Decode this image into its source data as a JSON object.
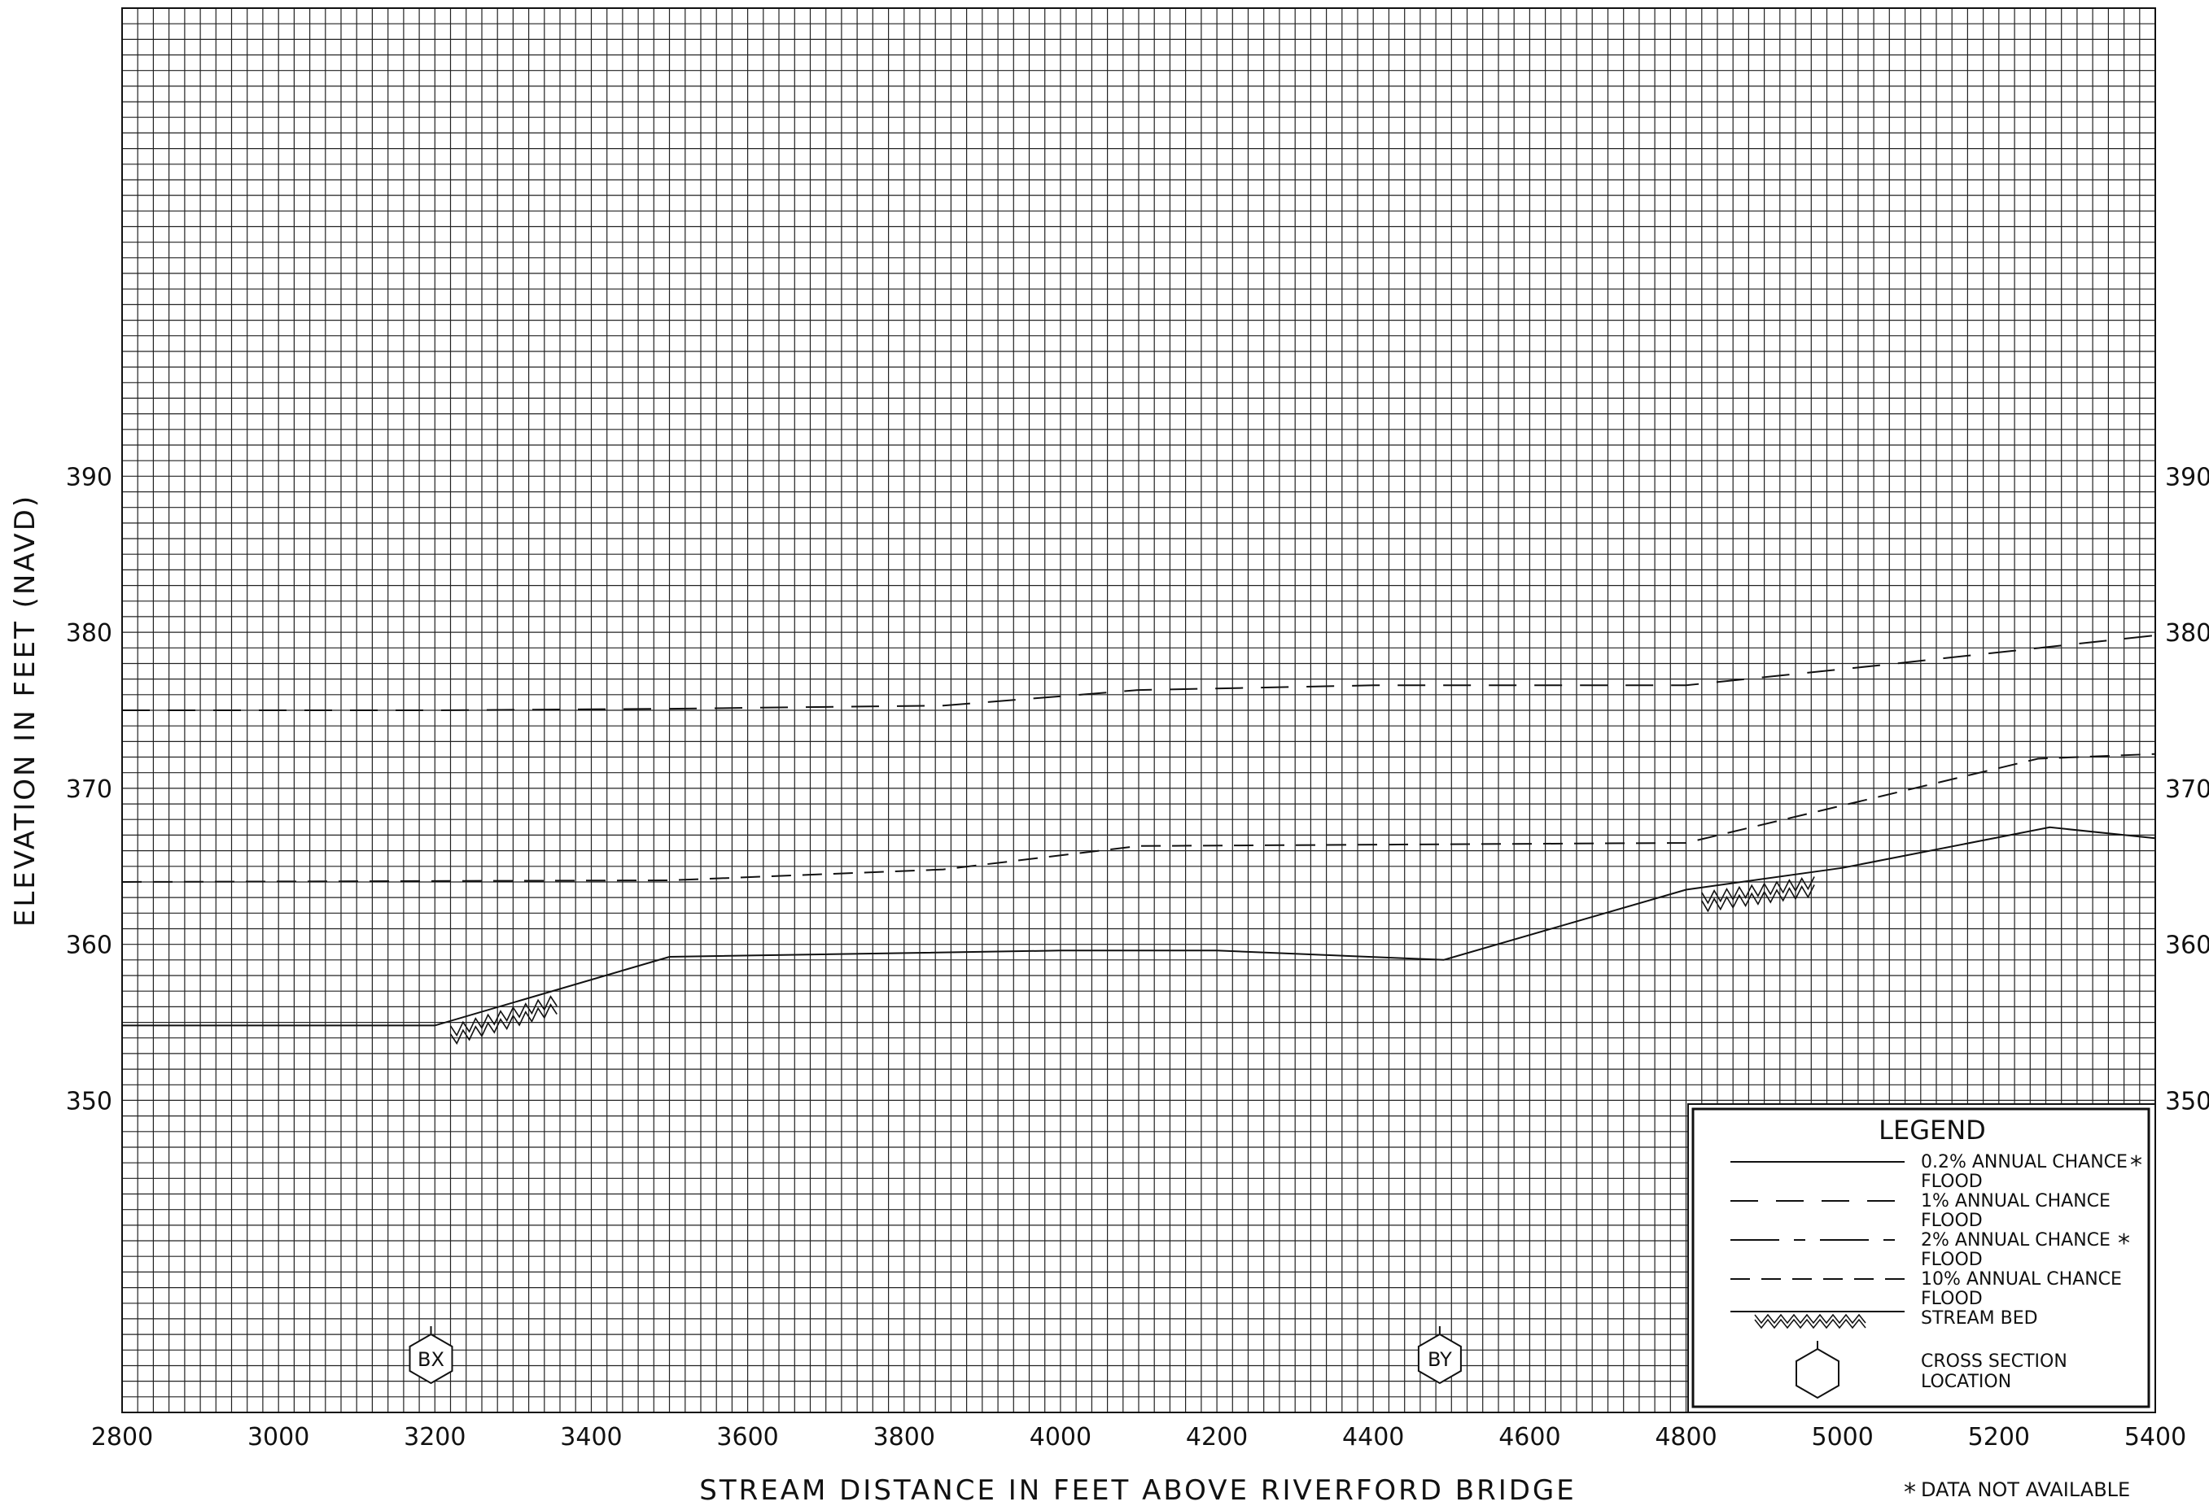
{
  "chart_data": {
    "type": "line",
    "xlabel": "STREAM DISTANCE IN FEET ABOVE RIVERFORD BRIDGE",
    "ylabel": "ELEVATION IN FEET (NAVD)",
    "xlim": [
      2800,
      5400
    ],
    "ylim": [
      330,
      420
    ],
    "x_ticks": [
      "2800",
      "3000",
      "3200",
      "3400",
      "3600",
      "3800",
      "4000",
      "4200",
      "4400",
      "4600",
      "4800",
      "5000",
      "5200",
      "5400"
    ],
    "y_ticks": [
      "350",
      "360",
      "370",
      "380",
      "390"
    ],
    "grid": true,
    "series": [
      {
        "name": "1% ANNUAL CHANCE FLOOD",
        "style": "long-dash",
        "x": [
          2800,
          3200,
          3500,
          3850,
          4100,
          4400,
          4800,
          5050,
          5400
        ],
        "y": [
          375.0,
          375.0,
          375.1,
          375.3,
          376.3,
          376.6,
          376.6,
          377.9,
          379.8
        ]
      },
      {
        "name": "10% ANNUAL CHANCE FLOOD",
        "style": "short-dash",
        "x": [
          2800,
          3500,
          3850,
          4100,
          4800,
          5050,
          5250,
          5400
        ],
        "y": [
          364.0,
          364.1,
          364.8,
          366.3,
          366.5,
          369.5,
          371.9,
          372.2
        ]
      },
      {
        "name": "STREAM BED",
        "style": "solid",
        "x": [
          2800,
          3200,
          3500,
          4000,
          4200,
          4490,
          4800,
          5000,
          5265,
          5400
        ],
        "y": [
          354.8,
          354.8,
          359.2,
          359.6,
          359.6,
          359.0,
          363.5,
          364.9,
          367.5,
          366.8
        ]
      }
    ],
    "hatch_segments": [
      [
        3220,
        3360
      ],
      [
        4820,
        4970
      ]
    ],
    "cross_sections": [
      {
        "label": "BX",
        "x": 3195
      },
      {
        "label": "BY",
        "x": 4485
      }
    ],
    "legend": {
      "title": "LEGEND",
      "placement": "bottom-right",
      "items": [
        {
          "style": "solid",
          "line1": "0.2% ANNUAL CHANCE",
          "line2": "FLOOD",
          "star": true
        },
        {
          "style": "long-dash",
          "line1": "1% ANNUAL CHANCE",
          "line2": "FLOOD",
          "star": false
        },
        {
          "style": "dash-dot",
          "line1": "2% ANNUAL CHANCE",
          "line2": "FLOOD",
          "star": true
        },
        {
          "style": "short-dash",
          "line1": "10% ANNUAL CHANCE",
          "line2": "FLOOD",
          "star": false
        },
        {
          "style": "stream-bed",
          "line1": "STREAM BED",
          "line2": "",
          "star": false
        },
        {
          "style": "hexagon",
          "line1": "CROSS SECTION",
          "line2": "LOCATION",
          "star": false
        }
      ]
    },
    "footnote": "DATA NOT AVAILABLE",
    "footnote_marker": "*"
  }
}
